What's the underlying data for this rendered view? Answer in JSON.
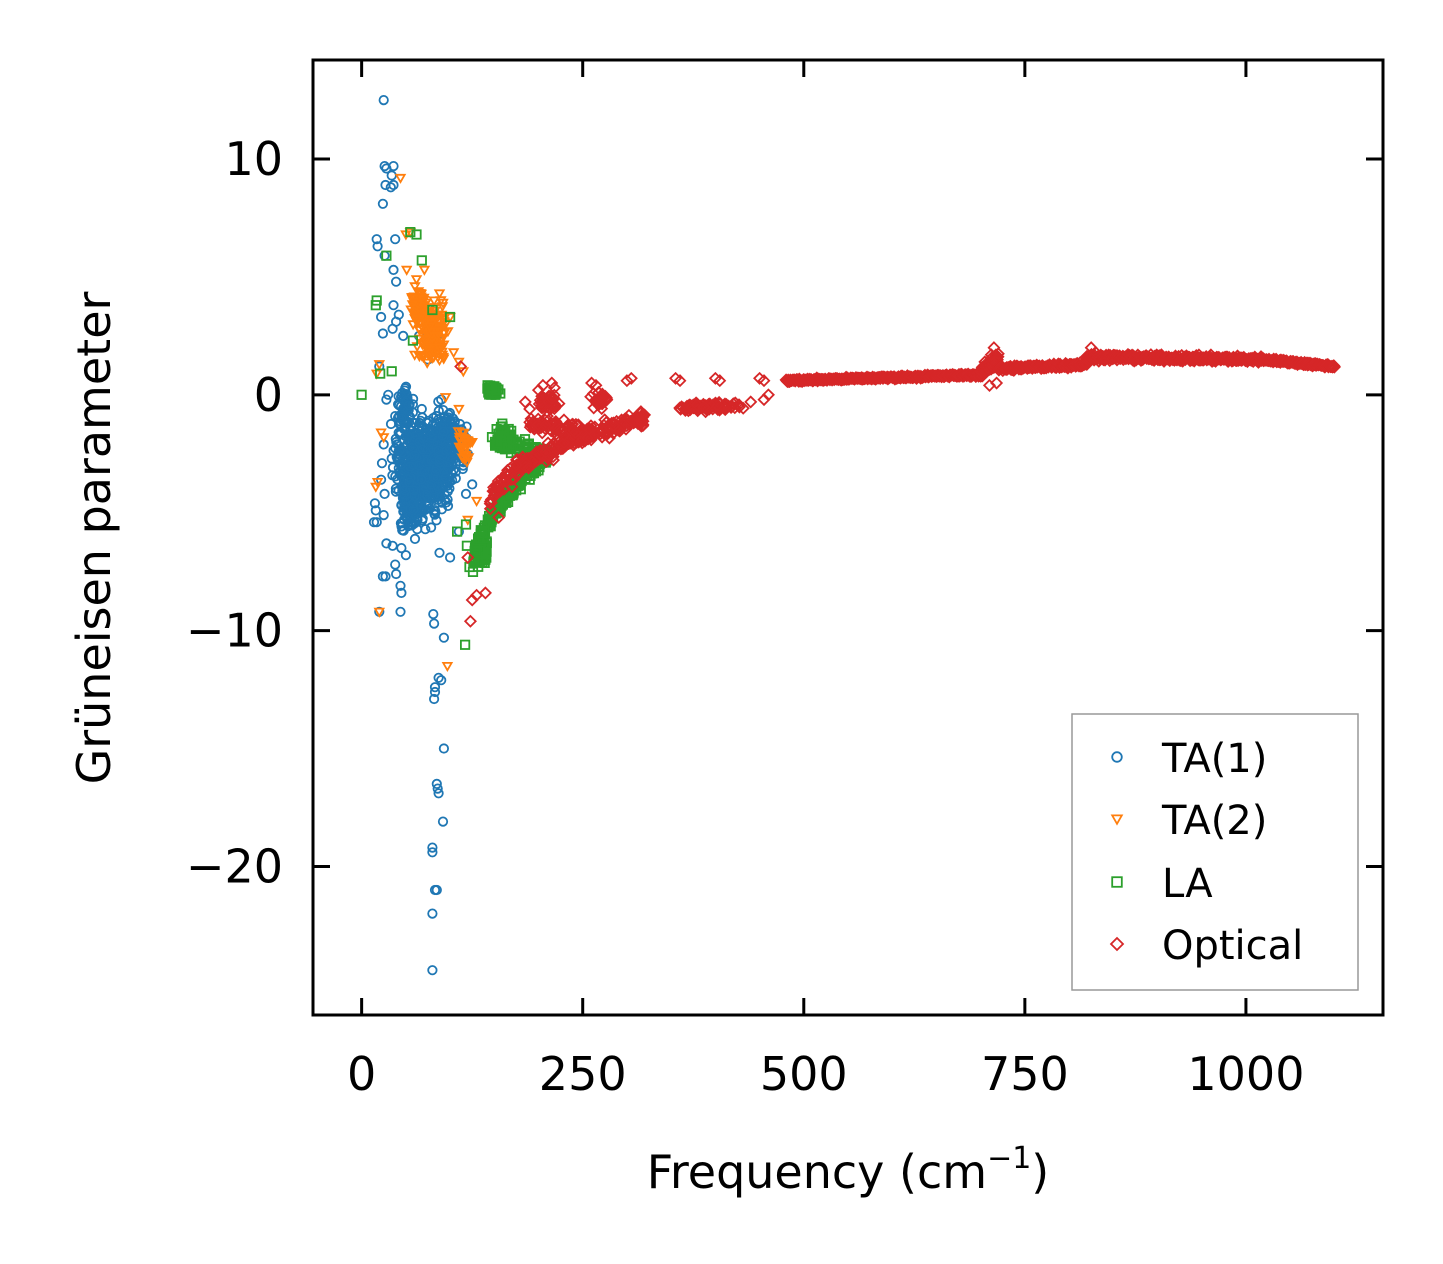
{
  "chart_data": {
    "type": "scatter",
    "title": "",
    "xlabel": "Frequency (cm",
    "xlabel_sup": "−1",
    "xlabel_suffix": ")",
    "ylabel": "Grüneisen parameter",
    "xlim": [
      -55,
      1155
    ],
    "ylim": [
      -26.3,
      14.2
    ],
    "xticks": [
      0,
      250,
      500,
      750,
      1000
    ],
    "xtick_labels": [
      "0",
      "250",
      "500",
      "750",
      "1000"
    ],
    "yticks": [
      10,
      0,
      -10,
      -20
    ],
    "ytick_labels": [
      "10",
      "0",
      "−10",
      "−20"
    ],
    "grid": false,
    "legend_position": "lower-right",
    "series": [
      {
        "name": "TA(1)",
        "marker": "circle",
        "color": "#1f77b4",
        "points": [
          [
            25,
            12.5
          ],
          [
            26,
            9.7
          ],
          [
            28,
            9.6
          ],
          [
            36,
            9.7
          ],
          [
            34,
            9.3
          ],
          [
            27,
            8.9
          ],
          [
            33,
            8.8
          ],
          [
            36,
            8.9
          ],
          [
            24,
            8.1
          ],
          [
            17,
            6.6
          ],
          [
            18,
            6.3
          ],
          [
            26,
            5.9
          ],
          [
            38,
            6.6
          ],
          [
            36,
            5.3
          ],
          [
            39,
            4.8
          ],
          [
            36,
            3.8
          ],
          [
            42,
            3.4
          ],
          [
            22,
            3.3
          ],
          [
            39,
            3.1
          ],
          [
            35,
            2.8
          ],
          [
            47,
            2.5
          ],
          [
            24,
            2.6
          ],
          [
            65,
            2.5
          ],
          [
            85,
            2.4
          ],
          [
            75,
            1.5
          ],
          [
            20,
            1.2
          ],
          [
            30,
            0.0
          ],
          [
            28,
            -0.2
          ],
          [
            38,
            -0.9
          ],
          [
            45,
            -1.0
          ],
          [
            58,
            -0.4
          ],
          [
            68,
            -0.6
          ],
          [
            90,
            -0.2
          ],
          [
            25,
            -2.1
          ],
          [
            34,
            -2.7
          ],
          [
            23,
            -2.9
          ],
          [
            22,
            -3.6
          ],
          [
            26,
            -4.2
          ],
          [
            15,
            -4.6
          ],
          [
            16,
            -4.9
          ],
          [
            14,
            -5.4
          ],
          [
            17,
            -5.4
          ],
          [
            25,
            -5.1
          ],
          [
            28,
            -6.3
          ],
          [
            35,
            -6.4
          ],
          [
            38,
            -7.2
          ],
          [
            24,
            -7.7
          ],
          [
            27,
            -7.7
          ],
          [
            39,
            -7.6
          ],
          [
            44,
            -8.1
          ],
          [
            45,
            -8.4
          ],
          [
            20,
            -9.2
          ],
          [
            44,
            -9.2
          ],
          [
            81,
            -9.3
          ],
          [
            82,
            -9.7
          ],
          [
            93,
            -10.3
          ],
          [
            87,
            -12.0
          ],
          [
            90,
            -12.1
          ],
          [
            83,
            -12.4
          ],
          [
            83,
            -12.6
          ],
          [
            82,
            -12.9
          ],
          [
            93,
            -15.0
          ],
          [
            85,
            -16.5
          ],
          [
            86,
            -16.7
          ],
          [
            87,
            -16.9
          ],
          [
            92,
            -18.1
          ],
          [
            80,
            -19.2
          ],
          [
            80,
            -19.4
          ],
          [
            83,
            -21.0
          ],
          [
            85,
            -21.0
          ],
          [
            80,
            -22.0
          ],
          [
            80,
            -24.4
          ],
          [
            60,
            -4.3
          ],
          [
            72,
            -5.7
          ],
          [
            88,
            -6.7
          ],
          [
            100,
            -6.9
          ],
          [
            110,
            -5.8
          ],
          [
            105,
            -1.2
          ],
          [
            95,
            -3.5
          ],
          [
            65,
            -3.0
          ],
          [
            55,
            -5.5
          ],
          [
            50,
            -6.8
          ],
          [
            45,
            -6.5
          ],
          [
            118,
            -4.2
          ],
          [
            120,
            -2.5
          ],
          [
            115,
            -3.0
          ],
          [
            125,
            -3.8
          ]
        ],
        "clusters": [
          {
            "cx": 70,
            "cy": -3.0,
            "rx": 42,
            "ry": 2.8,
            "n": 650
          },
          {
            "cx": 55,
            "cy": -4.5,
            "rx": 20,
            "ry": 2.0,
            "n": 120
          },
          {
            "cx": 100,
            "cy": -2.2,
            "rx": 25,
            "ry": 2.2,
            "n": 120
          },
          {
            "cx": 48,
            "cy": -0.5,
            "rx": 12,
            "ry": 1.3,
            "n": 50
          }
        ]
      },
      {
        "name": "TA(2)",
        "marker": "triangle-down",
        "color": "#ff7f0e",
        "points": [
          [
            44,
            9.2
          ],
          [
            50,
            6.8
          ],
          [
            55,
            6.9
          ],
          [
            51,
            5.3
          ],
          [
            62,
            4.9
          ],
          [
            71,
            5.3
          ],
          [
            82,
            4.0
          ],
          [
            88,
            4.3
          ],
          [
            92,
            3.9
          ],
          [
            100,
            3.3
          ],
          [
            77,
            2.9
          ],
          [
            88,
            2.0
          ],
          [
            104,
            1.8
          ],
          [
            110,
            1.4
          ],
          [
            115,
            1.0
          ],
          [
            20,
            1.3
          ],
          [
            17,
            0.9
          ],
          [
            22,
            -1.6
          ],
          [
            25,
            -1.8
          ],
          [
            18,
            -3.7
          ],
          [
            16,
            -3.9
          ],
          [
            20,
            -9.2
          ],
          [
            97,
            -11.5
          ],
          [
            120,
            -5.3
          ],
          [
            130,
            -4.5
          ],
          [
            125,
            -2.0
          ],
          [
            110,
            -0.6
          ],
          [
            95,
            -0.1
          ],
          [
            60,
            1.7
          ],
          [
            73,
            3.5
          ],
          [
            85,
            2.5
          ]
        ],
        "clusters": [
          {
            "cx": 80,
            "cy": 2.6,
            "rx": 24,
            "ry": 1.6,
            "n": 150
          },
          {
            "cx": 65,
            "cy": 3.8,
            "rx": 14,
            "ry": 1.0,
            "n": 60
          },
          {
            "cx": 115,
            "cy": -2.2,
            "rx": 10,
            "ry": 1.2,
            "n": 30
          }
        ]
      },
      {
        "name": "LA",
        "marker": "square",
        "color": "#2ca02c",
        "points": [
          [
            0,
            0.0
          ],
          [
            55,
            6.9
          ],
          [
            62,
            6.8
          ],
          [
            28,
            5.9
          ],
          [
            68,
            5.7
          ],
          [
            17,
            4.0
          ],
          [
            16,
            3.8
          ],
          [
            80,
            3.6
          ],
          [
            100,
            3.3
          ],
          [
            58,
            2.3
          ],
          [
            21,
            0.9
          ],
          [
            34,
            1.0
          ],
          [
            118,
            -5.5
          ],
          [
            119,
            -6.4
          ],
          [
            122,
            -7.3
          ],
          [
            117,
            -10.6
          ],
          [
            108,
            -5.8
          ],
          [
            180,
            -4.0
          ],
          [
            190,
            -3.6
          ],
          [
            200,
            -3.2
          ]
        ],
        "curves": [
          {
            "x0": 125,
            "x1": 210,
            "y0": -7.6,
            "y1": -2.5,
            "power": 0.55,
            "jitter": 0.45,
            "n": 220
          },
          {
            "x0": 150,
            "x1": 210,
            "y0": -2.0,
            "y1": -2.5,
            "power": 1.0,
            "jitter": 0.5,
            "n": 60
          }
        ],
        "clusters": [
          {
            "cx": 148,
            "cy": 0.2,
            "rx": 10,
            "ry": 0.35,
            "n": 50
          },
          {
            "cx": 160,
            "cy": -1.8,
            "rx": 14,
            "ry": 0.7,
            "n": 70
          },
          {
            "cx": 135,
            "cy": -6.6,
            "rx": 10,
            "ry": 1.0,
            "n": 60
          }
        ]
      },
      {
        "name": "Optical",
        "marker": "diamond",
        "color": "#d62728",
        "points": [
          [
            112,
            1.2
          ],
          [
            120,
            -6.9
          ],
          [
            125,
            -8.7
          ],
          [
            123,
            -9.6
          ],
          [
            130,
            -8.5
          ],
          [
            140,
            -8.4
          ],
          [
            155,
            -5.2
          ],
          [
            200,
            0.2
          ],
          [
            205,
            0.4
          ],
          [
            215,
            0.5
          ],
          [
            218,
            0.3
          ],
          [
            260,
            0.5
          ],
          [
            265,
            0.4
          ],
          [
            300,
            0.6
          ],
          [
            305,
            0.7
          ],
          [
            355,
            0.7
          ],
          [
            360,
            0.6
          ],
          [
            400,
            0.7
          ],
          [
            405,
            0.6
          ],
          [
            450,
            0.7
          ],
          [
            455,
            0.6
          ],
          [
            440,
            -0.3
          ],
          [
            455,
            -0.2
          ],
          [
            460,
            0.0
          ],
          [
            185,
            -0.3
          ],
          [
            190,
            -0.6
          ],
          [
            210,
            -0.9
          ],
          [
            170,
            -3.9
          ],
          [
            165,
            -3.2
          ],
          [
            160,
            -4.0
          ]
        ],
        "curves": [
          {
            "x0": 145,
            "x1": 320,
            "y0": -5.0,
            "y1": -1.0,
            "power": 0.45,
            "jitter": 0.5,
            "n": 260
          },
          {
            "x0": 190,
            "x1": 260,
            "y0": -1.2,
            "y1": -1.6,
            "power": 1.0,
            "jitter": 0.5,
            "n": 80
          }
        ],
        "clusters": [
          {
            "cx": 395,
            "cy": -0.5,
            "rx": 50,
            "ry": 0.25,
            "n": 100
          },
          {
            "cx": 210,
            "cy": -0.3,
            "rx": 18,
            "ry": 0.6,
            "n": 40
          },
          {
            "cx": 270,
            "cy": -0.2,
            "rx": 12,
            "ry": 0.5,
            "n": 30
          }
        ],
        "bands": [
          {
            "x0": 480,
            "x1": 700,
            "y0": 0.6,
            "y1": 0.85,
            "jitter": 0.09,
            "n": 280
          },
          {
            "x0": 700,
            "x1": 720,
            "y0": 0.9,
            "y1": 1.6,
            "jitter": 0.4,
            "n": 60
          },
          {
            "x0": 720,
            "x1": 820,
            "y0": 1.1,
            "y1": 1.3,
            "jitter": 0.15,
            "n": 160
          },
          {
            "x0": 820,
            "x1": 1020,
            "y0": 1.6,
            "y1": 1.5,
            "jitter": 0.18,
            "n": 340
          },
          {
            "x0": 1020,
            "x1": 1100,
            "y0": 1.5,
            "y1": 1.2,
            "jitter": 0.1,
            "n": 120
          }
        ],
        "points_extra": [
          [
            715,
            2.0
          ],
          [
            712,
            1.7
          ],
          [
            718,
            0.5
          ],
          [
            710,
            0.4
          ],
          [
            825,
            2.0
          ],
          [
            830,
            1.8
          ],
          [
            1100,
            1.2
          ]
        ]
      }
    ]
  }
}
